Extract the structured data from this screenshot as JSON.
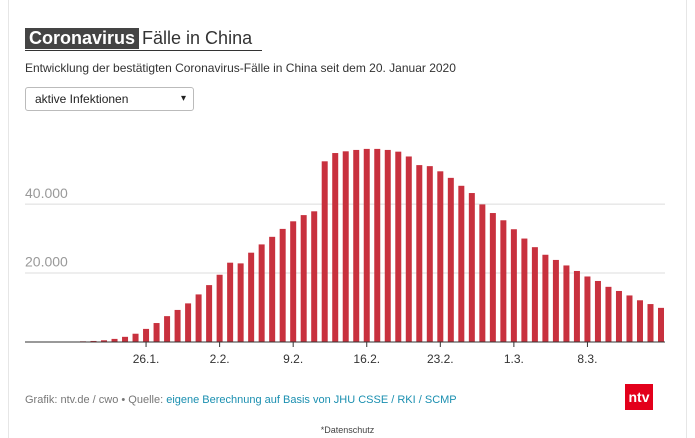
{
  "header": {
    "title_highlight": "Coronavirus",
    "title_rest": "Fälle in China",
    "subtitle": "Entwicklung der bestätigten Coronavirus-Fälle in China seit dem 20. Januar 2020"
  },
  "dropdown": {
    "label": "aktive Infektionen",
    "arrow": "▾"
  },
  "chart_data": {
    "type": "bar",
    "color": "#c8313e",
    "grid": true,
    "categories": [
      null,
      null,
      null,
      null,
      null,
      null,
      "26.1.",
      null,
      null,
      null,
      null,
      null,
      null,
      "2.2.",
      null,
      null,
      null,
      null,
      null,
      null,
      "9.2.",
      null,
      null,
      null,
      null,
      null,
      null,
      "16.2.",
      null,
      null,
      null,
      null,
      null,
      null,
      "23.2.",
      null,
      null,
      null,
      null,
      null,
      null,
      "1.3.",
      null,
      null,
      null,
      null,
      null,
      null,
      "8.3.",
      null,
      null,
      null,
      null,
      null,
      null,
      null
    ],
    "values": [
      200,
      300,
      500,
      900,
      1500,
      2400,
      3800,
      5500,
      7500,
      9300,
      11200,
      13800,
      16500,
      19500,
      23000,
      22800,
      25900,
      28300,
      30500,
      32800,
      35000,
      36800,
      37900,
      52400,
      54800,
      55300,
      55700,
      56000,
      56000,
      55700,
      55200,
      53800,
      51300,
      51000,
      49500,
      47600,
      45300,
      43200,
      39900,
      37400,
      35300,
      32700,
      30000,
      27500,
      25300,
      23800,
      22200,
      20600,
      19000,
      17700,
      16000,
      14800,
      13500,
      12100,
      11000,
      9900
    ],
    "ylim": [
      0,
      58000
    ],
    "yticks": [
      {
        "value": 20000,
        "label": "20.000"
      },
      {
        "value": 40000,
        "label": "40.000"
      }
    ]
  },
  "footer": {
    "source_prefix": "Grafik: ntv.de / cwo • Quelle:",
    "source_link": "eigene Berechnung auf Basis von JHU CSSE / RKI / SCMP",
    "logo": "ntv",
    "privacy": "*Datenschutz"
  }
}
